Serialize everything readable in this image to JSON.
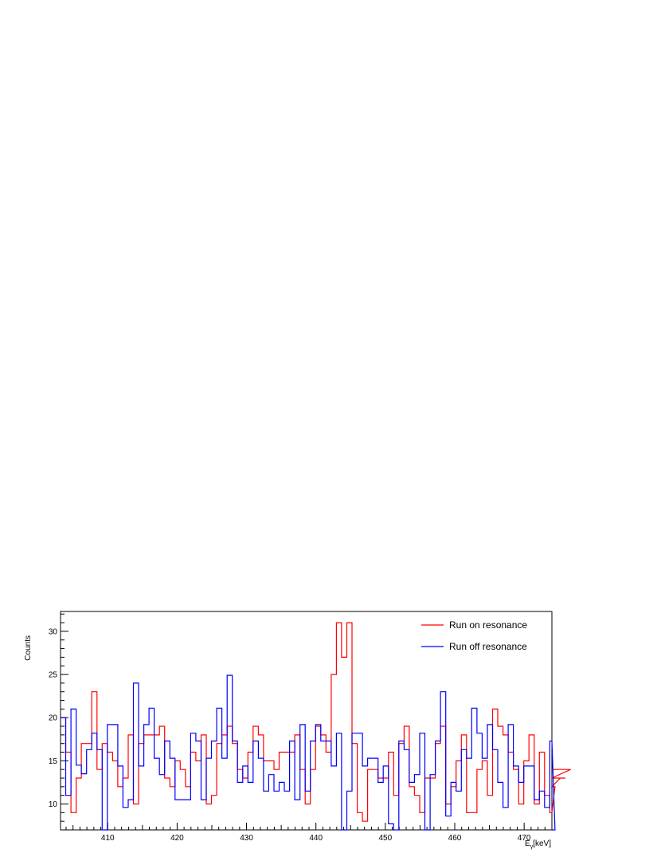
{
  "chart_data": {
    "type": "line",
    "step": true,
    "xlabel_main": "E",
    "xlabel_sub": "γ",
    "xlabel_unit": "[keV]",
    "ylabel": "Counts",
    "xlim": [
      403.2,
      474.0
    ],
    "ylim": [
      7.0,
      32.3
    ],
    "bin_width": 0.75,
    "x_start": 403.2,
    "x_ticks": [
      410,
      420,
      430,
      440,
      450,
      460,
      470
    ],
    "y_ticks": [
      10,
      15,
      20,
      25,
      30
    ],
    "grid": false,
    "legend_position": "top-right",
    "series": [
      {
        "name": "Run on resonance",
        "color": "#ff0000",
        "values": [
          20,
          16,
          9,
          13,
          17,
          17,
          23,
          14,
          17,
          16,
          15,
          12,
          13,
          18,
          10,
          17,
          18,
          18,
          18,
          19,
          13,
          12,
          15,
          14,
          12,
          16,
          15,
          18,
          10,
          11,
          17,
          18,
          19,
          17,
          14,
          13,
          16,
          19,
          18,
          15,
          15,
          14,
          16,
          16,
          16,
          18,
          14,
          10,
          14,
          19,
          18,
          16,
          25,
          31,
          27,
          31,
          17,
          9,
          8,
          14,
          14,
          13,
          13,
          16,
          11,
          17,
          19,
          12,
          11,
          9,
          13,
          13,
          17,
          19,
          10,
          12,
          15,
          18,
          9,
          9,
          14,
          15,
          11,
          21,
          19,
          18,
          16,
          14,
          10,
          15,
          18,
          10,
          16,
          11,
          9,
          12,
          13,
          13,
          14
        ]
      },
      {
        "name": "Run off resonance",
        "color": "#0000ff",
        "values": [
          20,
          11,
          21,
          14.5,
          13.5,
          16.3,
          18.2,
          16.3,
          5,
          19.2,
          19.2,
          14.4,
          9.6,
          10.5,
          24,
          14.4,
          19.2,
          21.1,
          15.3,
          13.4,
          17.3,
          15.3,
          10.5,
          10.5,
          10.5,
          18.2,
          17.3,
          10.5,
          15.3,
          17.3,
          21.1,
          15.3,
          24.9,
          17.3,
          12.5,
          14.4,
          12.5,
          17.3,
          15.3,
          11.5,
          13.4,
          11.5,
          12.5,
          11.5,
          17.3,
          10.5,
          19.2,
          11.5,
          17.3,
          19.2,
          17.3,
          17.3,
          14.4,
          18.2,
          6,
          11.5,
          18.2,
          18.2,
          14.4,
          15.3,
          15.3,
          12.5,
          14.4,
          7.7,
          6,
          17.3,
          16.3,
          12.5,
          13.4,
          18.2,
          6,
          13.4,
          17.3,
          23,
          8.6,
          12.5,
          11.5,
          16.3,
          15.3,
          21.1,
          18.2,
          15.3,
          19.2,
          16.3,
          12.5,
          9.6,
          19.2,
          14.4,
          12.5,
          14.4,
          14.4,
          10.5,
          11.5,
          9.6,
          17.3,
          6
        ]
      }
    ]
  }
}
